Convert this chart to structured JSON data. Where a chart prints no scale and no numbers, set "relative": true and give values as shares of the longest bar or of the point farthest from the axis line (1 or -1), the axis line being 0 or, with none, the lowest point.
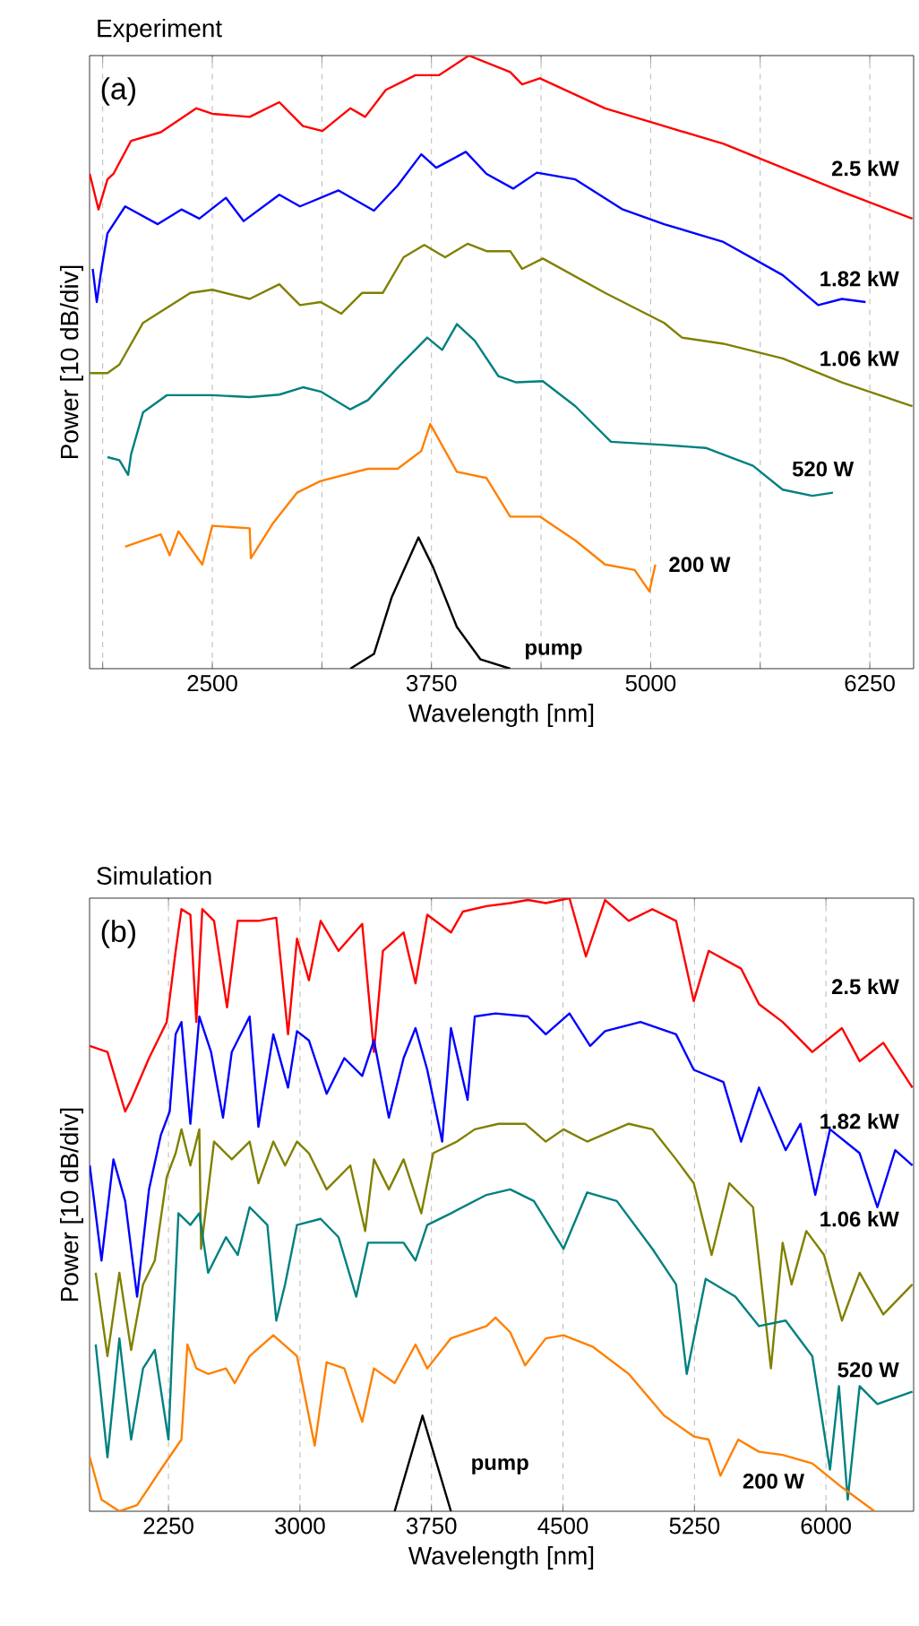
{
  "chart_data": [
    {
      "type": "line",
      "title": "Experiment",
      "xlabel": "Wavelength [nm]",
      "ylabel": "Power [10 dB/div]",
      "annotations": [
        "(a)"
      ],
      "relative": true,
      "grid": "x",
      "legend": false,
      "xlim": [
        1800,
        6500
      ],
      "xticks": [
        {
          "value": 1875,
          "label": null
        },
        2500,
        {
          "value": 3125,
          "label": null
        },
        3750,
        {
          "value": 4375,
          "label": null
        },
        5000,
        {
          "value": 5625,
          "label": null
        },
        6250
      ],
      "series": [
        {
          "name": "2.5 kW",
          "color": "#ff0000",
          "x": [
            1801,
            1851,
            1902,
            1936,
            2037,
            2206,
            2409,
            2500,
            2713,
            2882,
            3017,
            3128,
            3287,
            3372,
            3490,
            3659,
            3794,
            3963,
            4199,
            4267,
            4368,
            4740,
            5077,
            5415,
            5753,
            6091,
            6493
          ],
          "values": [
            0.807,
            0.749,
            0.798,
            0.807,
            0.861,
            0.875,
            0.914,
            0.905,
            0.9,
            0.924,
            0.885,
            0.877,
            0.914,
            0.9,
            0.944,
            0.968,
            0.968,
            1,
            0.973,
            0.953,
            0.963,
            0.914,
            0.885,
            0.856,
            0.817,
            0.778,
            0.734
          ]
        },
        {
          "name": "1.82 kW",
          "color": "#0000ff",
          "x": [
            1818,
            1841,
            1868,
            1902,
            2003,
            2189,
            2324,
            2426,
            2578,
            2679,
            2882,
            3000,
            3220,
            3422,
            3557,
            3692,
            3777,
            3946,
            4064,
            4216,
            4351,
            4571,
            4841,
            5077,
            5415,
            5753,
            5956,
            6091,
            6226
          ],
          "values": [
            0.652,
            0.598,
            0.652,
            0.71,
            0.754,
            0.725,
            0.749,
            0.734,
            0.768,
            0.73,
            0.773,
            0.754,
            0.78,
            0.747,
            0.788,
            0.839,
            0.817,
            0.843,
            0.807,
            0.783,
            0.809,
            0.798,
            0.749,
            0.725,
            0.696,
            0.642,
            0.593,
            0.603,
            0.598
          ]
        },
        {
          "name": "1.06 kW",
          "color": "#808000",
          "x": [
            1801,
            1902,
            1970,
            2105,
            2375,
            2500,
            2713,
            2882,
            3000,
            3118,
            3236,
            3355,
            3473,
            3591,
            3709,
            3828,
            3956,
            4064,
            4199,
            4267,
            4385,
            4740,
            5077,
            5179,
            5415,
            5753,
            6091,
            6493
          ],
          "values": [
            0.482,
            0.482,
            0.496,
            0.564,
            0.613,
            0.618,
            0.603,
            0.627,
            0.593,
            0.598,
            0.579,
            0.613,
            0.613,
            0.671,
            0.691,
            0.671,
            0.693,
            0.681,
            0.681,
            0.652,
            0.669,
            0.613,
            0.564,
            0.54,
            0.53,
            0.506,
            0.467,
            0.428
          ]
        },
        {
          "name": "520 W",
          "color": "#008080",
          "x": [
            1902,
            1970,
            2020,
            2037,
            2105,
            2240,
            2500,
            2713,
            2882,
            3017,
            3118,
            3287,
            3388,
            3557,
            3726,
            3811,
            3895,
            3997,
            4132,
            4233,
            4385,
            4571,
            4774,
            5077,
            5314,
            5584,
            5753,
            5922,
            6040
          ],
          "values": [
            0.345,
            0.34,
            0.316,
            0.35,
            0.418,
            0.446,
            0.446,
            0.443,
            0.447,
            0.459,
            0.452,
            0.423,
            0.438,
            0.491,
            0.54,
            0.52,
            0.562,
            0.535,
            0.477,
            0.467,
            0.469,
            0.428,
            0.37,
            0.365,
            0.36,
            0.331,
            0.292,
            0.282,
            0.287
          ]
        },
        {
          "name": "200 W",
          "color": "#ff8000",
          "x": [
            2003,
            2206,
            2257,
            2307,
            2443,
            2500,
            2713,
            2720,
            2848,
            2983,
            3118,
            3388,
            3557,
            3692,
            3743,
            3895,
            4064,
            4199,
            4368,
            4571,
            4740,
            4909,
            4993,
            5027
          ],
          "values": [
            0.199,
            0.219,
            0.185,
            0.224,
            0.17,
            0.233,
            0.229,
            0.18,
            0.238,
            0.287,
            0.306,
            0.326,
            0.326,
            0.355,
            0.399,
            0.321,
            0.311,
            0.248,
            0.248,
            0.209,
            0.17,
            0.161,
            0.126,
            0.17
          ]
        },
        {
          "name": "pump",
          "color": "#000000",
          "x": [
            3287,
            3422,
            3524,
            3676,
            3760,
            3895,
            4030,
            4199
          ],
          "values": [
            0,
            0.024,
            0.117,
            0.214,
            0.165,
            0.068,
            0.015,
            0
          ]
        }
      ]
    },
    {
      "type": "line",
      "title": "Simulation",
      "xlabel": "Wavelength [nm]",
      "ylabel": "Power [10 dB/div]",
      "annotations": [
        "(b)"
      ],
      "relative": true,
      "grid": "x",
      "legend": false,
      "xlim": [
        1800,
        6500
      ],
      "xticks": [
        2250,
        3000,
        3750,
        4500,
        5250,
        6000
      ],
      "series": [
        {
          "name": "2.5 kW",
          "color": "#ff0000",
          "x": [
            1801,
            1902,
            2003,
            2037,
            2139,
            2206,
            2240,
            2291,
            2324,
            2375,
            2409,
            2443,
            2510,
            2584,
            2645,
            2763,
            2865,
            2932,
            2983,
            3051,
            3118,
            3220,
            3355,
            3422,
            3473,
            3591,
            3659,
            3726,
            3861,
            3929,
            4064,
            4199,
            4300,
            4402,
            4537,
            4631,
            4740,
            4875,
            5010,
            5145,
            5246,
            5331,
            5516,
            5618,
            5753,
            5922,
            6091,
            6192,
            6327,
            6493
          ],
          "values": [
            0.759,
            0.749,
            0.652,
            0.671,
            0.739,
            0.778,
            0.798,
            0.914,
            0.982,
            0.973,
            0.798,
            0.982,
            0.963,
            0.822,
            0.963,
            0.963,
            0.968,
            0.778,
            0.934,
            0.866,
            0.963,
            0.914,
            0.958,
            0.749,
            0.914,
            0.944,
            0.861,
            0.973,
            0.944,
            0.978,
            0.987,
            0.992,
            0.997,
            0.992,
            1,
            0.905,
            0.997,
            0.963,
            0.982,
            0.963,
            0.832,
            0.914,
            0.885,
            0.827,
            0.798,
            0.749,
            0.788,
            0.734,
            0.764,
            0.691
          ]
        },
        {
          "name": "1.82 kW",
          "color": "#0000ff",
          "x": [
            1801,
            1868,
            1936,
            2003,
            2071,
            2139,
            2206,
            2257,
            2291,
            2324,
            2375,
            2426,
            2493,
            2561,
            2611,
            2713,
            2763,
            2848,
            2932,
            2983,
            3051,
            3152,
            3253,
            3355,
            3422,
            3507,
            3591,
            3659,
            3726,
            3811,
            3861,
            3956,
            3997,
            4115,
            4300,
            4402,
            4537,
            4655,
            4740,
            4942,
            5145,
            5246,
            5415,
            5516,
            5618,
            5770,
            5855,
            5939,
            6023,
            6192,
            6293,
            6395,
            6493
          ],
          "values": [
            0.564,
            0.409,
            0.574,
            0.506,
            0.35,
            0.525,
            0.613,
            0.652,
            0.778,
            0.798,
            0.632,
            0.807,
            0.749,
            0.642,
            0.749,
            0.807,
            0.627,
            0.778,
            0.691,
            0.783,
            0.768,
            0.681,
            0.739,
            0.71,
            0.768,
            0.642,
            0.739,
            0.788,
            0.72,
            0.603,
            0.788,
            0.671,
            0.807,
            0.812,
            0.807,
            0.778,
            0.812,
            0.759,
            0.783,
            0.798,
            0.778,
            0.72,
            0.7,
            0.603,
            0.691,
            0.589,
            0.632,
            0.516,
            0.623,
            0.584,
            0.496,
            0.589,
            0.564
          ]
        },
        {
          "name": "1.06 kW",
          "color": "#808000",
          "x": [
            1835,
            1902,
            1970,
            2037,
            2105,
            2172,
            2240,
            2291,
            2324,
            2375,
            2426,
            2436,
            2510,
            2611,
            2713,
            2763,
            2848,
            2915,
            2983,
            3051,
            3152,
            3287,
            3372,
            3422,
            3507,
            3591,
            3692,
            3760,
            3895,
            3997,
            4132,
            4284,
            4402,
            4503,
            4638,
            4875,
            5010,
            5145,
            5246,
            5348,
            5449,
            5584,
            5686,
            5753,
            5804,
            5888,
            5989,
            6091,
            6192,
            6327,
            6493
          ],
          "values": [
            0.389,
            0.253,
            0.389,
            0.263,
            0.37,
            0.409,
            0.545,
            0.584,
            0.623,
            0.564,
            0.623,
            0.428,
            0.603,
            0.574,
            0.603,
            0.535,
            0.603,
            0.564,
            0.603,
            0.584,
            0.525,
            0.564,
            0.457,
            0.574,
            0.525,
            0.574,
            0.486,
            0.584,
            0.603,
            0.623,
            0.632,
            0.632,
            0.603,
            0.623,
            0.603,
            0.632,
            0.623,
            0.574,
            0.535,
            0.418,
            0.535,
            0.496,
            0.233,
            0.438,
            0.37,
            0.457,
            0.418,
            0.311,
            0.389,
            0.321,
            0.37
          ]
        },
        {
          "name": "520 W",
          "color": "#008080",
          "x": [
            1835,
            1902,
            1970,
            2037,
            2105,
            2172,
            2250,
            2274,
            2307,
            2375,
            2426,
            2476,
            2578,
            2645,
            2713,
            2814,
            2865,
            2915,
            2983,
            3118,
            3220,
            3321,
            3388,
            3591,
            3659,
            3726,
            3861,
            4064,
            4199,
            4334,
            4503,
            4638,
            4807,
            5010,
            5145,
            5206,
            5314,
            5483,
            5618,
            5770,
            5922,
            6023,
            6074,
            6124,
            6192,
            6293,
            6493
          ],
          "values": [
            0.272,
            0.088,
            0.282,
            0.117,
            0.233,
            0.263,
            0.117,
            0.282,
            0.486,
            0.467,
            0.486,
            0.389,
            0.447,
            0.418,
            0.496,
            0.467,
            0.311,
            0.37,
            0.467,
            0.477,
            0.447,
            0.35,
            0.438,
            0.438,
            0.409,
            0.467,
            0.486,
            0.516,
            0.525,
            0.506,
            0.428,
            0.52,
            0.506,
            0.428,
            0.37,
            0.224,
            0.379,
            0.35,
            0.302,
            0.311,
            0.253,
            0.068,
            0.204,
            0.019,
            0.204,
            0.175,
            0.195
          ]
        },
        {
          "name": "200 W",
          "color": "#ff8000",
          "x": [
            1801,
            1868,
            1970,
            2071,
            2139,
            2206,
            2324,
            2358,
            2409,
            2476,
            2578,
            2628,
            2713,
            2848,
            2983,
            3084,
            3152,
            3253,
            3355,
            3422,
            3540,
            3659,
            3726,
            3861,
            4064,
            4115,
            4199,
            4284,
            4402,
            4503,
            4672,
            4875,
            5077,
            5246,
            5331,
            5398,
            5500,
            5618,
            5753,
            5922,
            6091,
            6277
          ],
          "values": [
            0.088,
            0.019,
            0,
            0.01,
            0.039,
            0.068,
            0.117,
            0.272,
            0.233,
            0.224,
            0.233,
            0.209,
            0.253,
            0.287,
            0.253,
            0.107,
            0.243,
            0.233,
            0.146,
            0.233,
            0.209,
            0.272,
            0.233,
            0.282,
            0.302,
            0.316,
            0.292,
            0.238,
            0.282,
            0.287,
            0.268,
            0.224,
            0.156,
            0.122,
            0.117,
            0.058,
            0.117,
            0.097,
            0.092,
            0.078,
            0.039,
            0
          ]
        },
        {
          "name": "pump",
          "color": "#000000",
          "x": [
            3540,
            3699,
            3861
          ],
          "values": [
            0,
            0.156,
            0
          ]
        }
      ]
    }
  ]
}
